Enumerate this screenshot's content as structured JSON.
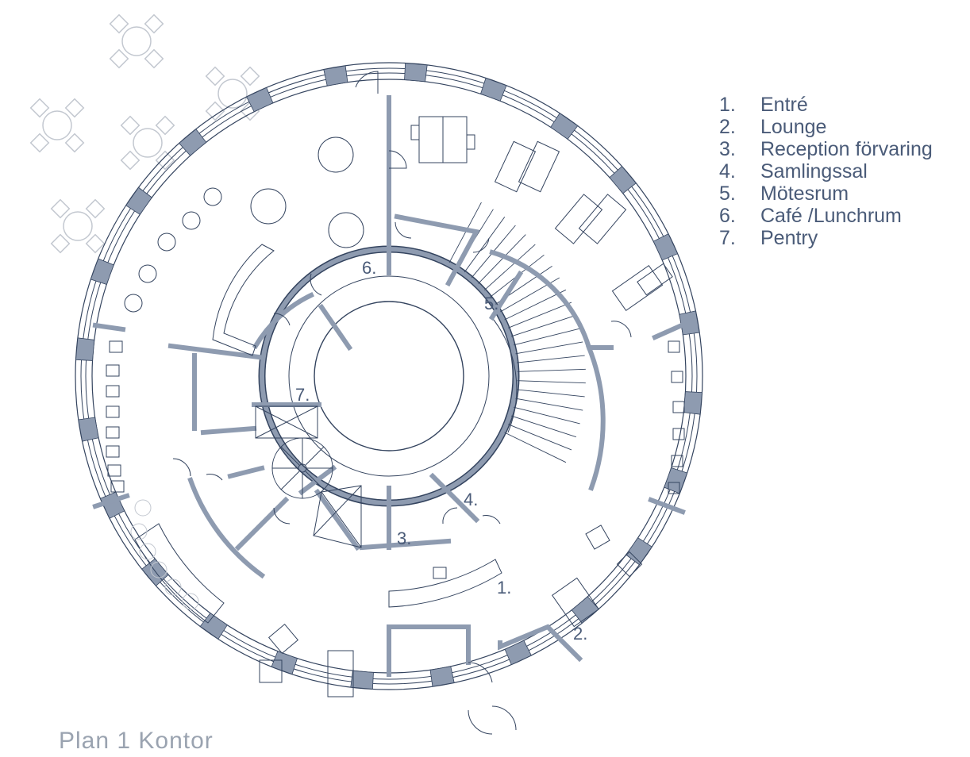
{
  "plan_title": "Plan 1 Kontor",
  "legend": [
    {
      "num": "1.",
      "label": "Entré"
    },
    {
      "num": "2.",
      "label": "Lounge"
    },
    {
      "num": "3.",
      "label": "Reception förvaring"
    },
    {
      "num": "4.",
      "label": "Samlingssal"
    },
    {
      "num": "5.",
      "label": "Mötesrum"
    },
    {
      "num": "6.",
      "label": "Café /Lunchrum"
    },
    {
      "num": "7.",
      "label": "Pentry"
    }
  ],
  "room_labels": [
    "1.",
    "2.",
    "3.",
    "4.",
    "5.",
    "6.",
    "7."
  ],
  "colors": {
    "wall_fill": "#8e9bb0",
    "line": "#34445f",
    "text": "#4a5b78",
    "outside_furniture": "#c3c8d0"
  }
}
